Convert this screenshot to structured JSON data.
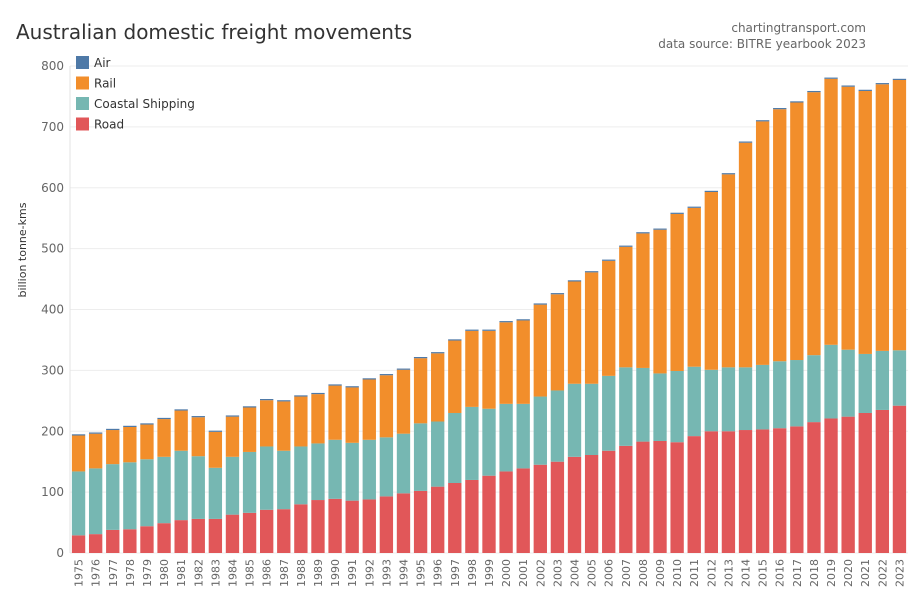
{
  "title": "Australian domestic freight movements",
  "credits": {
    "site": "chartingtransport.com",
    "source": "data source: BITRE yearbook 2023"
  },
  "chart_data": {
    "type": "bar",
    "stacked": true,
    "ylabel": "billion tonne-kms",
    "ylim": [
      0,
      800
    ],
    "yticks": [
      0,
      100,
      200,
      300,
      400,
      500,
      600,
      700,
      800
    ],
    "grid": true,
    "legend": "top-left",
    "categories": [
      "1975",
      "1976",
      "1977",
      "1978",
      "1979",
      "1980",
      "1981",
      "1982",
      "1983",
      "1984",
      "1985",
      "1986",
      "1987",
      "1988",
      "1989",
      "1990",
      "1991",
      "1992",
      "1993",
      "1994",
      "1995",
      "1996",
      "1997",
      "1998",
      "1999",
      "2000",
      "2001",
      "2002",
      "2003",
      "2004",
      "2005",
      "2006",
      "2007",
      "2008",
      "2009",
      "2010",
      "2011",
      "2012",
      "2013",
      "2014",
      "2015",
      "2016",
      "2017",
      "2018",
      "2019",
      "2020",
      "2021",
      "2022",
      "2023"
    ],
    "series": [
      {
        "name": "Road",
        "color": "#e15759",
        "values": [
          29,
          31,
          38,
          39,
          44,
          49,
          54,
          56,
          56,
          63,
          66,
          71,
          72,
          80,
          87,
          89,
          86,
          88,
          93,
          98,
          102,
          109,
          115,
          120,
          127,
          134,
          139,
          145,
          150,
          158,
          161,
          168,
          176,
          183,
          184,
          182,
          192,
          200,
          200,
          202,
          203,
          205,
          208,
          215,
          221,
          224,
          230,
          235,
          242
        ]
      },
      {
        "name": "Coastal Shipping",
        "color": "#76b7b2",
        "values": [
          105,
          108,
          108,
          110,
          110,
          109,
          114,
          103,
          84,
          95,
          100,
          104,
          96,
          95,
          93,
          97,
          95,
          98,
          97,
          98,
          111,
          107,
          115,
          120,
          110,
          111,
          106,
          112,
          117,
          120,
          117,
          123,
          129,
          121,
          111,
          117,
          114,
          101,
          105,
          103,
          106,
          110,
          109,
          110,
          121,
          110,
          97,
          97,
          91
        ]
      },
      {
        "name": "Rail",
        "color": "#f28e2b",
        "values": [
          59,
          57,
          56,
          58,
          57,
          62,
          66,
          64,
          59,
          66,
          73,
          76,
          81,
          82,
          81,
          89,
          91,
          99,
          102,
          105,
          107,
          112,
          119,
          125,
          128,
          134,
          137,
          151,
          158,
          168,
          183,
          189,
          198,
          221,
          236,
          258,
          261,
          292,
          317,
          369,
          400,
          414,
          423,
          432,
          437,
          432,
          432,
          438,
          444
        ]
      },
      {
        "name": "Air",
        "color": "#4e79a7",
        "values": [
          0.2,
          0.2,
          0.2,
          0.2,
          0.2,
          0.2,
          0.2,
          0.2,
          0.2,
          0.2,
          0.2,
          0.2,
          0.2,
          0.2,
          0.2,
          0.2,
          0.2,
          0.2,
          0.2,
          0.2,
          0.2,
          0.2,
          0.2,
          0.2,
          0.2,
          0.2,
          0.2,
          0.2,
          0.2,
          0.2,
          0.2,
          0.2,
          0.2,
          0.2,
          0.2,
          0.2,
          0.2,
          0.2,
          0.2,
          0.2,
          0.2,
          0.2,
          0.2,
          0.2,
          0.2,
          0.2,
          0.2,
          0.2,
          0.2
        ]
      }
    ],
    "legend_order": [
      "Air",
      "Rail",
      "Coastal Shipping",
      "Road"
    ]
  }
}
